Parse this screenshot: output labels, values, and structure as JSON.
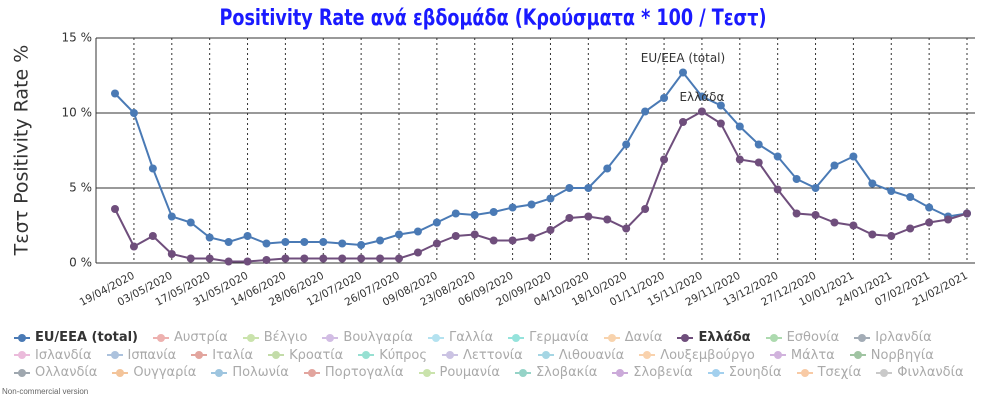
{
  "chart_data": {
    "type": "line",
    "title": "Positivity Rate ανά εβδομάδα (Κρούσματα * 100 / Τεστ)",
    "y_label": "Τεστ Positivity Rate %",
    "footer": "Non-commercial version",
    "categories": [
      null,
      "19/04/2020",
      null,
      "03/05/2020",
      null,
      "17/05/2020",
      null,
      "31/05/2020",
      null,
      "14/06/2020",
      null,
      "28/06/2020",
      null,
      "12/07/2020",
      null,
      "26/07/2020",
      null,
      "09/08/2020",
      null,
      "23/08/2020",
      null,
      "06/09/2020",
      null,
      "20/09/2020",
      null,
      "04/10/2020",
      null,
      "18/10/2020",
      null,
      "01/11/2020",
      null,
      "15/11/2020",
      null,
      "29/11/2020",
      null,
      "13/12/2020",
      null,
      "27/12/2020",
      null,
      "10/01/2021",
      null,
      "24/01/2021",
      null,
      "07/02/2021",
      null,
      "21/02/2021"
    ],
    "ylim": [
      0,
      15
    ],
    "yticks": [
      {
        "value": 0,
        "label": "0 %"
      },
      {
        "value": 5,
        "label": "5 %"
      },
      {
        "value": 10,
        "label": "10 %"
      },
      {
        "value": 15,
        "label": "15 %"
      }
    ],
    "grid": true,
    "series": [
      {
        "name": "EU/EEA (total)",
        "color": "#4a7ab5",
        "visible": true,
        "label_at": 30,
        "values": [
          11.3,
          10.0,
          6.3,
          3.1,
          2.7,
          1.7,
          1.4,
          1.8,
          1.3,
          1.4,
          1.4,
          1.4,
          1.3,
          1.2,
          1.5,
          1.9,
          2.1,
          2.7,
          3.3,
          3.2,
          3.4,
          3.7,
          3.9,
          4.3,
          5.0,
          5.0,
          6.3,
          7.9,
          10.1,
          11.0,
          12.7,
          11.1,
          10.5,
          9.1,
          7.9,
          7.1,
          5.6,
          5.0,
          6.5,
          7.1,
          5.3,
          4.8,
          4.4,
          3.7,
          3.1,
          3.3
        ]
      },
      {
        "name": "Αυστρία",
        "color": "#d9534f",
        "visible": false
      },
      {
        "name": "Βέλγιο",
        "color": "#8bc34a",
        "visible": false
      },
      {
        "name": "Βουλγαρία",
        "color": "#9c6fc4",
        "visible": false
      },
      {
        "name": "Γαλλία",
        "color": "#5bc0de",
        "visible": false
      },
      {
        "name": "Γερμανία",
        "color": "#17c3b2",
        "visible": false
      },
      {
        "name": "Δανία",
        "color": "#f0a04b",
        "visible": false
      },
      {
        "name": "Ελλάδα",
        "color": "#6f4e7c",
        "visible": true,
        "label_at": 31,
        "values": [
          3.6,
          1.1,
          1.8,
          0.6,
          0.3,
          0.3,
          0.1,
          0.1,
          0.2,
          0.3,
          0.3,
          0.3,
          0.3,
          0.3,
          0.3,
          0.3,
          0.7,
          1.3,
          1.8,
          1.9,
          1.5,
          1.5,
          1.7,
          2.2,
          3.0,
          3.1,
          2.9,
          2.3,
          3.6,
          6.9,
          9.4,
          10.1,
          9.3,
          6.9,
          6.7,
          4.9,
          3.3,
          3.2,
          2.7,
          2.5,
          1.9,
          1.8,
          2.3,
          2.7,
          2.9,
          3.3
        ]
      },
      {
        "name": "Εσθονία",
        "color": "#4caf50",
        "visible": false
      },
      {
        "name": "Ιρλανδία",
        "color": "#34495e",
        "visible": false
      },
      {
        "name": "Ισλανδία",
        "color": "#d46ab0",
        "visible": false
      },
      {
        "name": "Ισπανία",
        "color": "#4a7ab5",
        "visible": false
      },
      {
        "name": "Ιταλία",
        "color": "#c0392b",
        "visible": false
      },
      {
        "name": "Κροατία",
        "color": "#7cb342",
        "visible": false
      },
      {
        "name": "Κύπρος",
        "color": "#1abc9c",
        "visible": false
      },
      {
        "name": "Λεττονία",
        "color": "#8e7cc3",
        "visible": false
      },
      {
        "name": "Λιθουανία",
        "color": "#3aa6c4",
        "visible": false
      },
      {
        "name": "Λουξεμβούργο",
        "color": "#f39c4b",
        "visible": false
      },
      {
        "name": "Μάλτα",
        "color": "#9b59b6",
        "visible": false
      },
      {
        "name": "Νορβηγία",
        "color": "#2e7d32",
        "visible": false
      },
      {
        "name": "Ολλανδία",
        "color": "#2c3e50",
        "visible": false
      },
      {
        "name": "Ουγγαρία",
        "color": "#e67e22",
        "visible": false
      },
      {
        "name": "Πολωνία",
        "color": "#2980b9",
        "visible": false
      },
      {
        "name": "Πορτογαλία",
        "color": "#c0392b",
        "visible": false
      },
      {
        "name": "Ρουμανία",
        "color": "#8bc34a",
        "visible": false
      },
      {
        "name": "Σλοβακία",
        "color": "#16a085",
        "visible": false
      },
      {
        "name": "Σλοβενία",
        "color": "#8e44ad",
        "visible": false
      },
      {
        "name": "Σουηδία",
        "color": "#3498db",
        "visible": false
      },
      {
        "name": "Τσεχία",
        "color": "#f08c3a",
        "visible": false
      },
      {
        "name": "Φινλανδία",
        "color": "#888888",
        "visible": false
      }
    ]
  }
}
